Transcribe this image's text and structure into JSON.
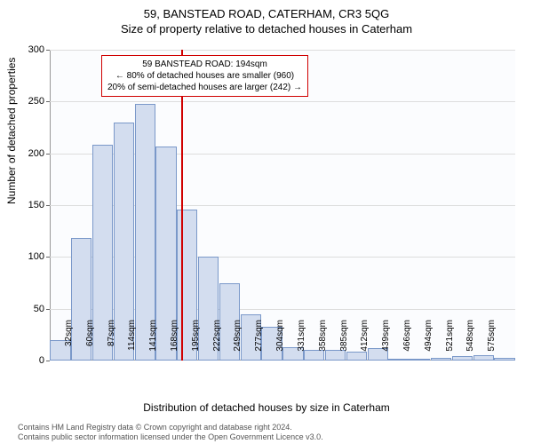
{
  "title_main": "59, BANSTEAD ROAD, CATERHAM, CR3 5QG",
  "title_sub": "Size of property relative to detached houses in Caterham",
  "chart": {
    "type": "histogram",
    "ylabel": "Number of detached properties",
    "xlabel": "Distribution of detached houses by size in Caterham",
    "ylim": [
      0,
      300
    ],
    "ytick_step": 50,
    "yticks": [
      0,
      50,
      100,
      150,
      200,
      250,
      300
    ],
    "bar_fill": "#d3ddef",
    "bar_stroke": "#7a98c9",
    "grid_color": "#dddddd",
    "plot_bg": "#fbfcfe",
    "marker_color": "#d00000",
    "marker_x_index": 6,
    "x_labels": [
      "32sqm",
      "60sqm",
      "87sqm",
      "114sqm",
      "141sqm",
      "168sqm",
      "195sqm",
      "222sqm",
      "249sqm",
      "277sqm",
      "304sqm",
      "331sqm",
      "358sqm",
      "385sqm",
      "412sqm",
      "439sqm",
      "466sqm",
      "494sqm",
      "521sqm",
      "548sqm",
      "575sqm"
    ],
    "values": [
      20,
      118,
      208,
      230,
      248,
      207,
      146,
      100,
      75,
      45,
      33,
      13,
      10,
      10,
      9,
      12,
      2,
      2,
      3,
      4,
      5,
      3
    ]
  },
  "annotation": {
    "line1": "59 BANSTEAD ROAD: 194sqm",
    "line2": "← 80% of detached houses are smaller (960)",
    "line3": "20% of semi-detached houses are larger (242) →"
  },
  "footer": {
    "line1": "Contains HM Land Registry data © Crown copyright and database right 2024.",
    "line2": "Contains public sector information licensed under the Open Government Licence v3.0."
  }
}
